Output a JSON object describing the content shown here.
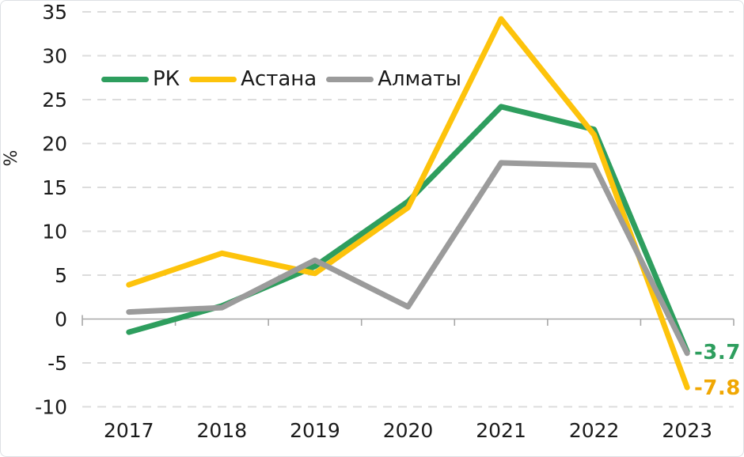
{
  "chart_data": {
    "type": "line",
    "title": "",
    "xlabel": "",
    "ylabel": "%",
    "categories": [
      "2017",
      "2018",
      "2019",
      "2020",
      "2021",
      "2022",
      "2023"
    ],
    "series": [
      {
        "name": "РК",
        "color": "#2e9e5e",
        "values": [
          -1.5,
          1.5,
          6.0,
          13.4,
          24.2,
          21.6,
          -3.7
        ],
        "end_label": "-3.7",
        "end_label_color": "#2e9e5e"
      },
      {
        "name": "Астана",
        "color": "#fdc30b",
        "values": [
          3.9,
          7.5,
          5.2,
          12.7,
          34.2,
          21.0,
          -7.8
        ],
        "end_label": "-7.8",
        "end_label_color": "#f0a703"
      },
      {
        "name": "Алматы",
        "color": "#9b9b9b",
        "values": [
          0.8,
          1.3,
          6.7,
          1.4,
          17.8,
          17.5,
          -3.9
        ],
        "end_label": "",
        "end_label_color": ""
      }
    ],
    "yticks": [
      35,
      30,
      25,
      20,
      15,
      10,
      5,
      0,
      -5,
      -10
    ],
    "ylim": [
      -10,
      35
    ],
    "grid": "dashed-horizontal",
    "legend_position": "inside-top-left",
    "grid_color": "#dcdcdc",
    "axis_color": "#a8a8a8",
    "text_color": "#1a1a1a",
    "line_width": 7
  }
}
